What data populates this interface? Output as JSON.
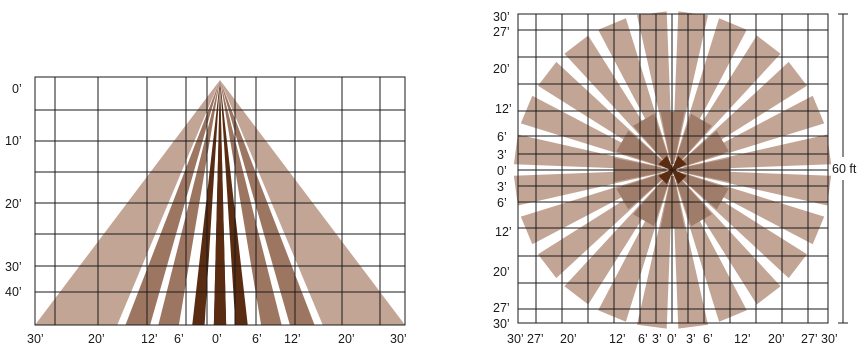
{
  "side_view": {
    "y_labels": [
      "0’",
      "10’",
      "20’",
      "30’",
      "40’"
    ],
    "x_labels": [
      "30’",
      "20’",
      "12’",
      "6’",
      "0’",
      "6’",
      "12’",
      "20’",
      "30’"
    ],
    "beams": [
      {
        "spread": [
          6.5,
          9
        ],
        "color": "#c3a596"
      },
      {
        "spread": [
          5,
          7
        ],
        "color": "#c3a596"
      },
      {
        "spread": [
          3.4,
          4.6
        ],
        "color": "#9d7662"
      },
      {
        "spread": [
          2.0,
          3.0
        ],
        "color": "#9d7662"
      },
      {
        "spread": [
          0.75,
          1.35
        ],
        "color": "#5a2c12"
      },
      {
        "spread": [
          -0.3,
          0.3
        ],
        "color": "#5a2c12"
      }
    ]
  },
  "top_view": {
    "left_labels": [
      "30’",
      "27’",
      "20’",
      "12’",
      "6’",
      "3’",
      "0’",
      "3’",
      "6’",
      "12’",
      "20’",
      "27’",
      "30’"
    ],
    "bottom_labels": [
      "30’",
      "27’",
      "20’",
      "12’",
      "6’",
      "3’",
      "0’",
      "3’",
      "6’",
      "12’",
      "20’",
      "27’",
      "30’"
    ],
    "range_label": "60 ft",
    "long_spokes": 24,
    "short_spokes": 12,
    "colors": {
      "long": "#c3a596",
      "short": "#a07d6a",
      "center": "#5a2c12"
    }
  }
}
